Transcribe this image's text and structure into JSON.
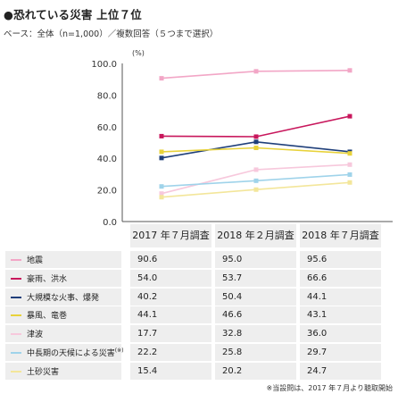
{
  "title": "●恐れている災害 上位７位",
  "subtitle": "ベース：全体（n=1,000）／複数回答（５つまで選択）",
  "footnote": "※当設問は、2017 年７月より聴取開始",
  "chart_data": {
    "type": "line",
    "x": [
      "2017年7月調査",
      "2018年2月調査",
      "2018年7月調査"
    ],
    "ylabel": "(%)",
    "ylim": [
      0,
      100
    ],
    "yticks": [
      "100.0",
      "80.0",
      "60.0",
      "40.0",
      "20.0",
      "0.0"
    ],
    "grid": false,
    "series": [
      {
        "name": "地震",
        "color": "#f2a6c6",
        "values": [
          90.6,
          95.0,
          95.6
        ]
      },
      {
        "name": "豪雨、洪水",
        "color": "#c8175c",
        "values": [
          54.0,
          53.7,
          66.6
        ]
      },
      {
        "name": "大規模な火事、爆発",
        "color": "#1f3f7a",
        "values": [
          40.2,
          50.4,
          44.1
        ]
      },
      {
        "name": "暴風、竜巻",
        "color": "#e8d23a",
        "values": [
          44.1,
          46.6,
          43.1
        ]
      },
      {
        "name": "津波",
        "color": "#f7c8dc",
        "values": [
          17.7,
          32.8,
          36.0
        ]
      },
      {
        "name": "中長期の天候による災害",
        "name_sup": "(※)",
        "color": "#9fd3ea",
        "values": [
          22.2,
          25.8,
          29.7
        ]
      },
      {
        "name": "土砂災害",
        "color": "#f3e69a",
        "values": [
          15.4,
          20.2,
          24.7
        ]
      }
    ]
  },
  "table": {
    "headers": [
      "2017 年７月調査",
      "2018 年２月調査",
      "2018 年７月調査"
    ],
    "rows": [
      [
        "90.6",
        "95.0",
        "95.6"
      ],
      [
        "54.0",
        "53.7",
        "66.6"
      ],
      [
        "40.2",
        "50.4",
        "44.1"
      ],
      [
        "44.1",
        "46.6",
        "43.1"
      ],
      [
        "17.7",
        "32.8",
        "36.0"
      ],
      [
        "22.2",
        "25.8",
        "29.7"
      ],
      [
        "15.4",
        "20.2",
        "24.7"
      ]
    ]
  }
}
